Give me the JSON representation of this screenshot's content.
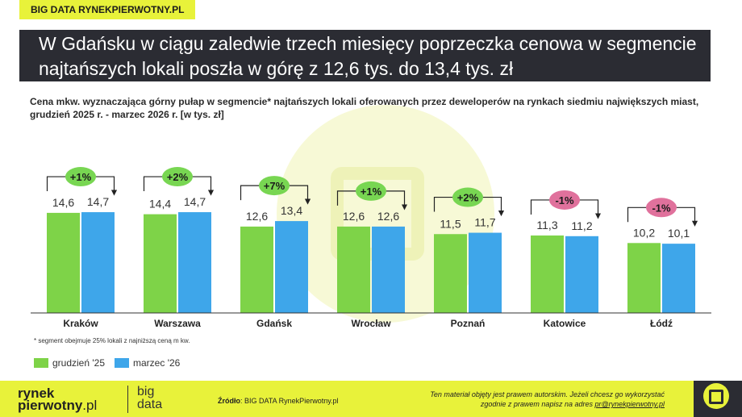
{
  "brand_tag": "BIG DATA RYNEKPIERWOTNY.PL",
  "headline": "W Gdańsku w ciągu zaledwie trzech miesięcy poprzeczka cenowa w segmencie najtańszych lokali poszła w górę z 12,6 tys. do 13,4 tys. zł",
  "subtitle": "Cena mkw. wyznaczająca górny  pułap w segmencie* najtańszych lokali oferowanych przez deweloperów na rynkach siedmiu największych miast, grudzień 2025 r. - marzec 2026 r. [w tys. zł]",
  "footnote": "* segment obejmuje 25% lokali z najniższą ceną m kw.",
  "colors": {
    "green": "#7ed348",
    "blue": "#3ea6ea",
    "pos_badge": "#78d652",
    "neg_badge": "#e0719c",
    "accent": "#e8f23a",
    "dark": "#2b2c33"
  },
  "chart_data": {
    "type": "bar",
    "categories": [
      "Kraków",
      "Warszawa",
      "Gdańsk",
      "Wrocław",
      "Poznań",
      "Katowice",
      "Łódź"
    ],
    "series": [
      {
        "name": "grudzień '25",
        "values": [
          14.6,
          14.4,
          12.6,
          12.6,
          11.5,
          11.3,
          10.2
        ],
        "labels": [
          "14,6",
          "14,4",
          "12,6",
          "12,6",
          "11,5",
          "11,3",
          "10,2"
        ]
      },
      {
        "name": "marzec '26",
        "values": [
          14.7,
          14.7,
          13.4,
          12.6,
          11.7,
          11.2,
          10.1
        ],
        "labels": [
          "14,7",
          "14,7",
          "13,4",
          "12,6",
          "11,7",
          "11,2",
          "10,1"
        ]
      }
    ],
    "changes": [
      "+1%",
      "+2%",
      "+7%",
      "+1%",
      "+2%",
      "-1%",
      "-1%"
    ],
    "ylim": [
      0,
      17
    ],
    "legend_position": "bottom-left"
  },
  "footer": {
    "logo_line1": "rynek",
    "logo_line2": "pierwotny",
    "logo_suffix": ".pl",
    "bigdata_line1": "big",
    "bigdata_line2": "data",
    "source_label": "Źródło",
    "source_text": ": BIG DATA RynekPierwotny.pl",
    "copyright_line1": "Ten materiał objęty jest prawem autorskim. Jeżeli chcesz go wykorzystać",
    "copyright_line2": "zgodnie z prawem napisz na adres ",
    "copyright_email": "pr@rynekpierwotny.pl"
  }
}
